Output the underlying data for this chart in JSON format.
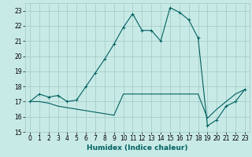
{
  "xlabel": "Humidex (Indice chaleur)",
  "background_color": "#c8eae6",
  "grid_color": "#a0c8c4",
  "line_color": "#006060",
  "xlim": [
    -0.5,
    23.5
  ],
  "ylim": [
    15.0,
    23.5
  ],
  "yticks": [
    15,
    16,
    17,
    18,
    19,
    20,
    21,
    22,
    23
  ],
  "xticks": [
    0,
    1,
    2,
    3,
    4,
    5,
    6,
    7,
    8,
    9,
    10,
    11,
    12,
    13,
    14,
    15,
    16,
    17,
    18,
    19,
    20,
    21,
    22,
    23
  ],
  "curve1_x": [
    0,
    1,
    2,
    3,
    4,
    5,
    6,
    7,
    8,
    9,
    10,
    11,
    12,
    13,
    14,
    15,
    16,
    17,
    18,
    19,
    20,
    21,
    22,
    23
  ],
  "curve1_y": [
    17.0,
    17.5,
    17.3,
    17.4,
    17.0,
    17.1,
    18.0,
    18.9,
    19.8,
    20.8,
    21.9,
    22.8,
    21.7,
    21.7,
    21.0,
    23.2,
    22.9,
    22.4,
    21.2,
    15.4,
    15.8,
    16.7,
    17.0,
    17.8
  ],
  "curve2_x": [
    0,
    1,
    2,
    3,
    4,
    5,
    6,
    7,
    8,
    9,
    10,
    11,
    12,
    13,
    14,
    15,
    16,
    17,
    18,
    19,
    20,
    21,
    22,
    23
  ],
  "curve2_y": [
    17.0,
    17.0,
    16.9,
    16.7,
    16.6,
    16.5,
    16.4,
    16.3,
    16.2,
    16.1,
    17.5,
    17.5,
    17.5,
    17.5,
    17.5,
    17.5,
    17.5,
    17.5,
    17.5,
    15.9,
    16.5,
    17.0,
    17.5,
    17.8
  ],
  "xlabel_fontsize": 6.5,
  "tick_fontsize": 5.5
}
